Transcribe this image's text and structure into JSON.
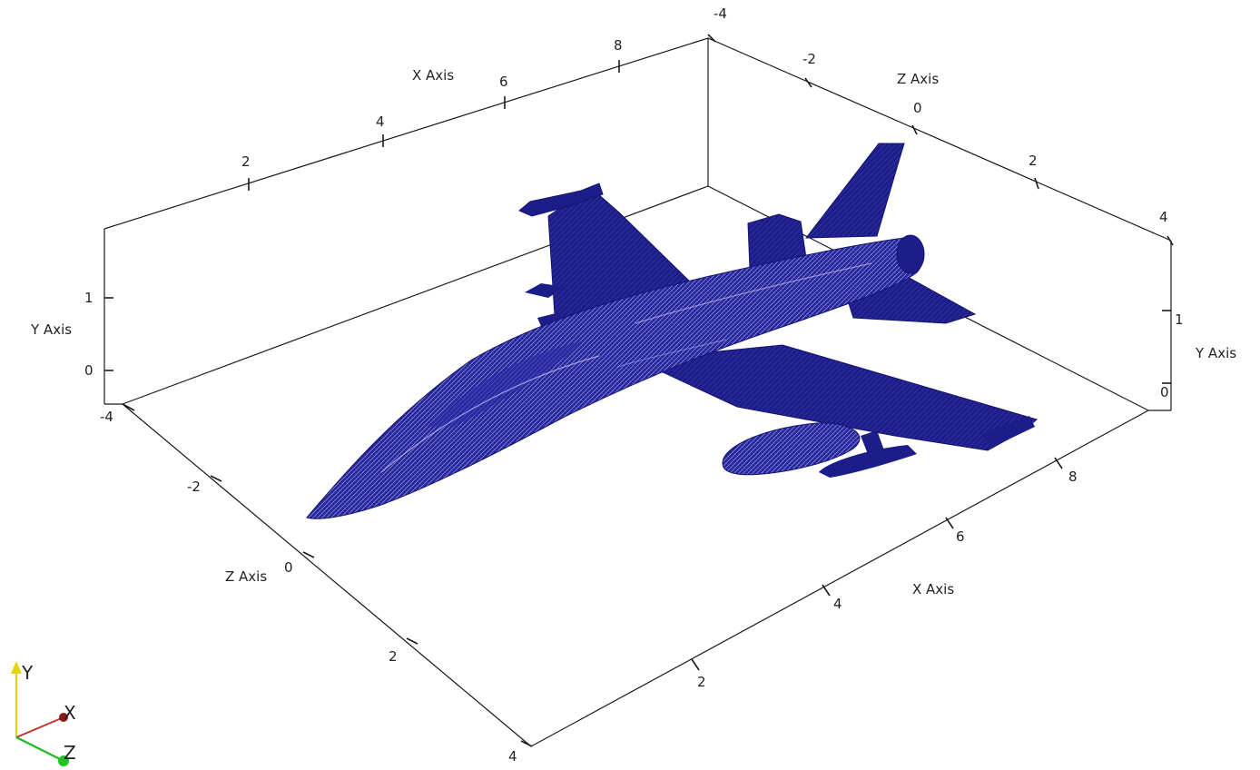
{
  "colors": {
    "mesh": "#1d1d8a",
    "mesh_dark": "#14146e",
    "mesh_light": "#c8c8ee",
    "frame": "#1a1a1a",
    "axis_x": "#c0392b",
    "axis_y": "#e6d400",
    "axis_z": "#22b822"
  },
  "axes": {
    "x_title_top": "X Axis",
    "x_title_bottom": "X Axis",
    "z_title_top": "Z Axis",
    "z_title_left": "Z Axis",
    "y_title_left": "Y Axis",
    "y_title_right": "Y Axis"
  },
  "ticks": {
    "x_top": [
      "2",
      "4",
      "6",
      "8"
    ],
    "x_bottom": [
      "2",
      "4",
      "6",
      "8"
    ],
    "z_top": [
      "-4",
      "-2",
      "0",
      "2",
      "4"
    ],
    "z_left": [
      "-4",
      "-2",
      "0",
      "2",
      "4"
    ],
    "y_left": [
      "1",
      "0"
    ],
    "y_right": [
      "1",
      "0"
    ]
  },
  "orientation_widget": {
    "x_label": "X",
    "y_label": "Y",
    "z_label": "Z"
  },
  "model": {
    "icon": "aircraft-mesh-icon"
  }
}
